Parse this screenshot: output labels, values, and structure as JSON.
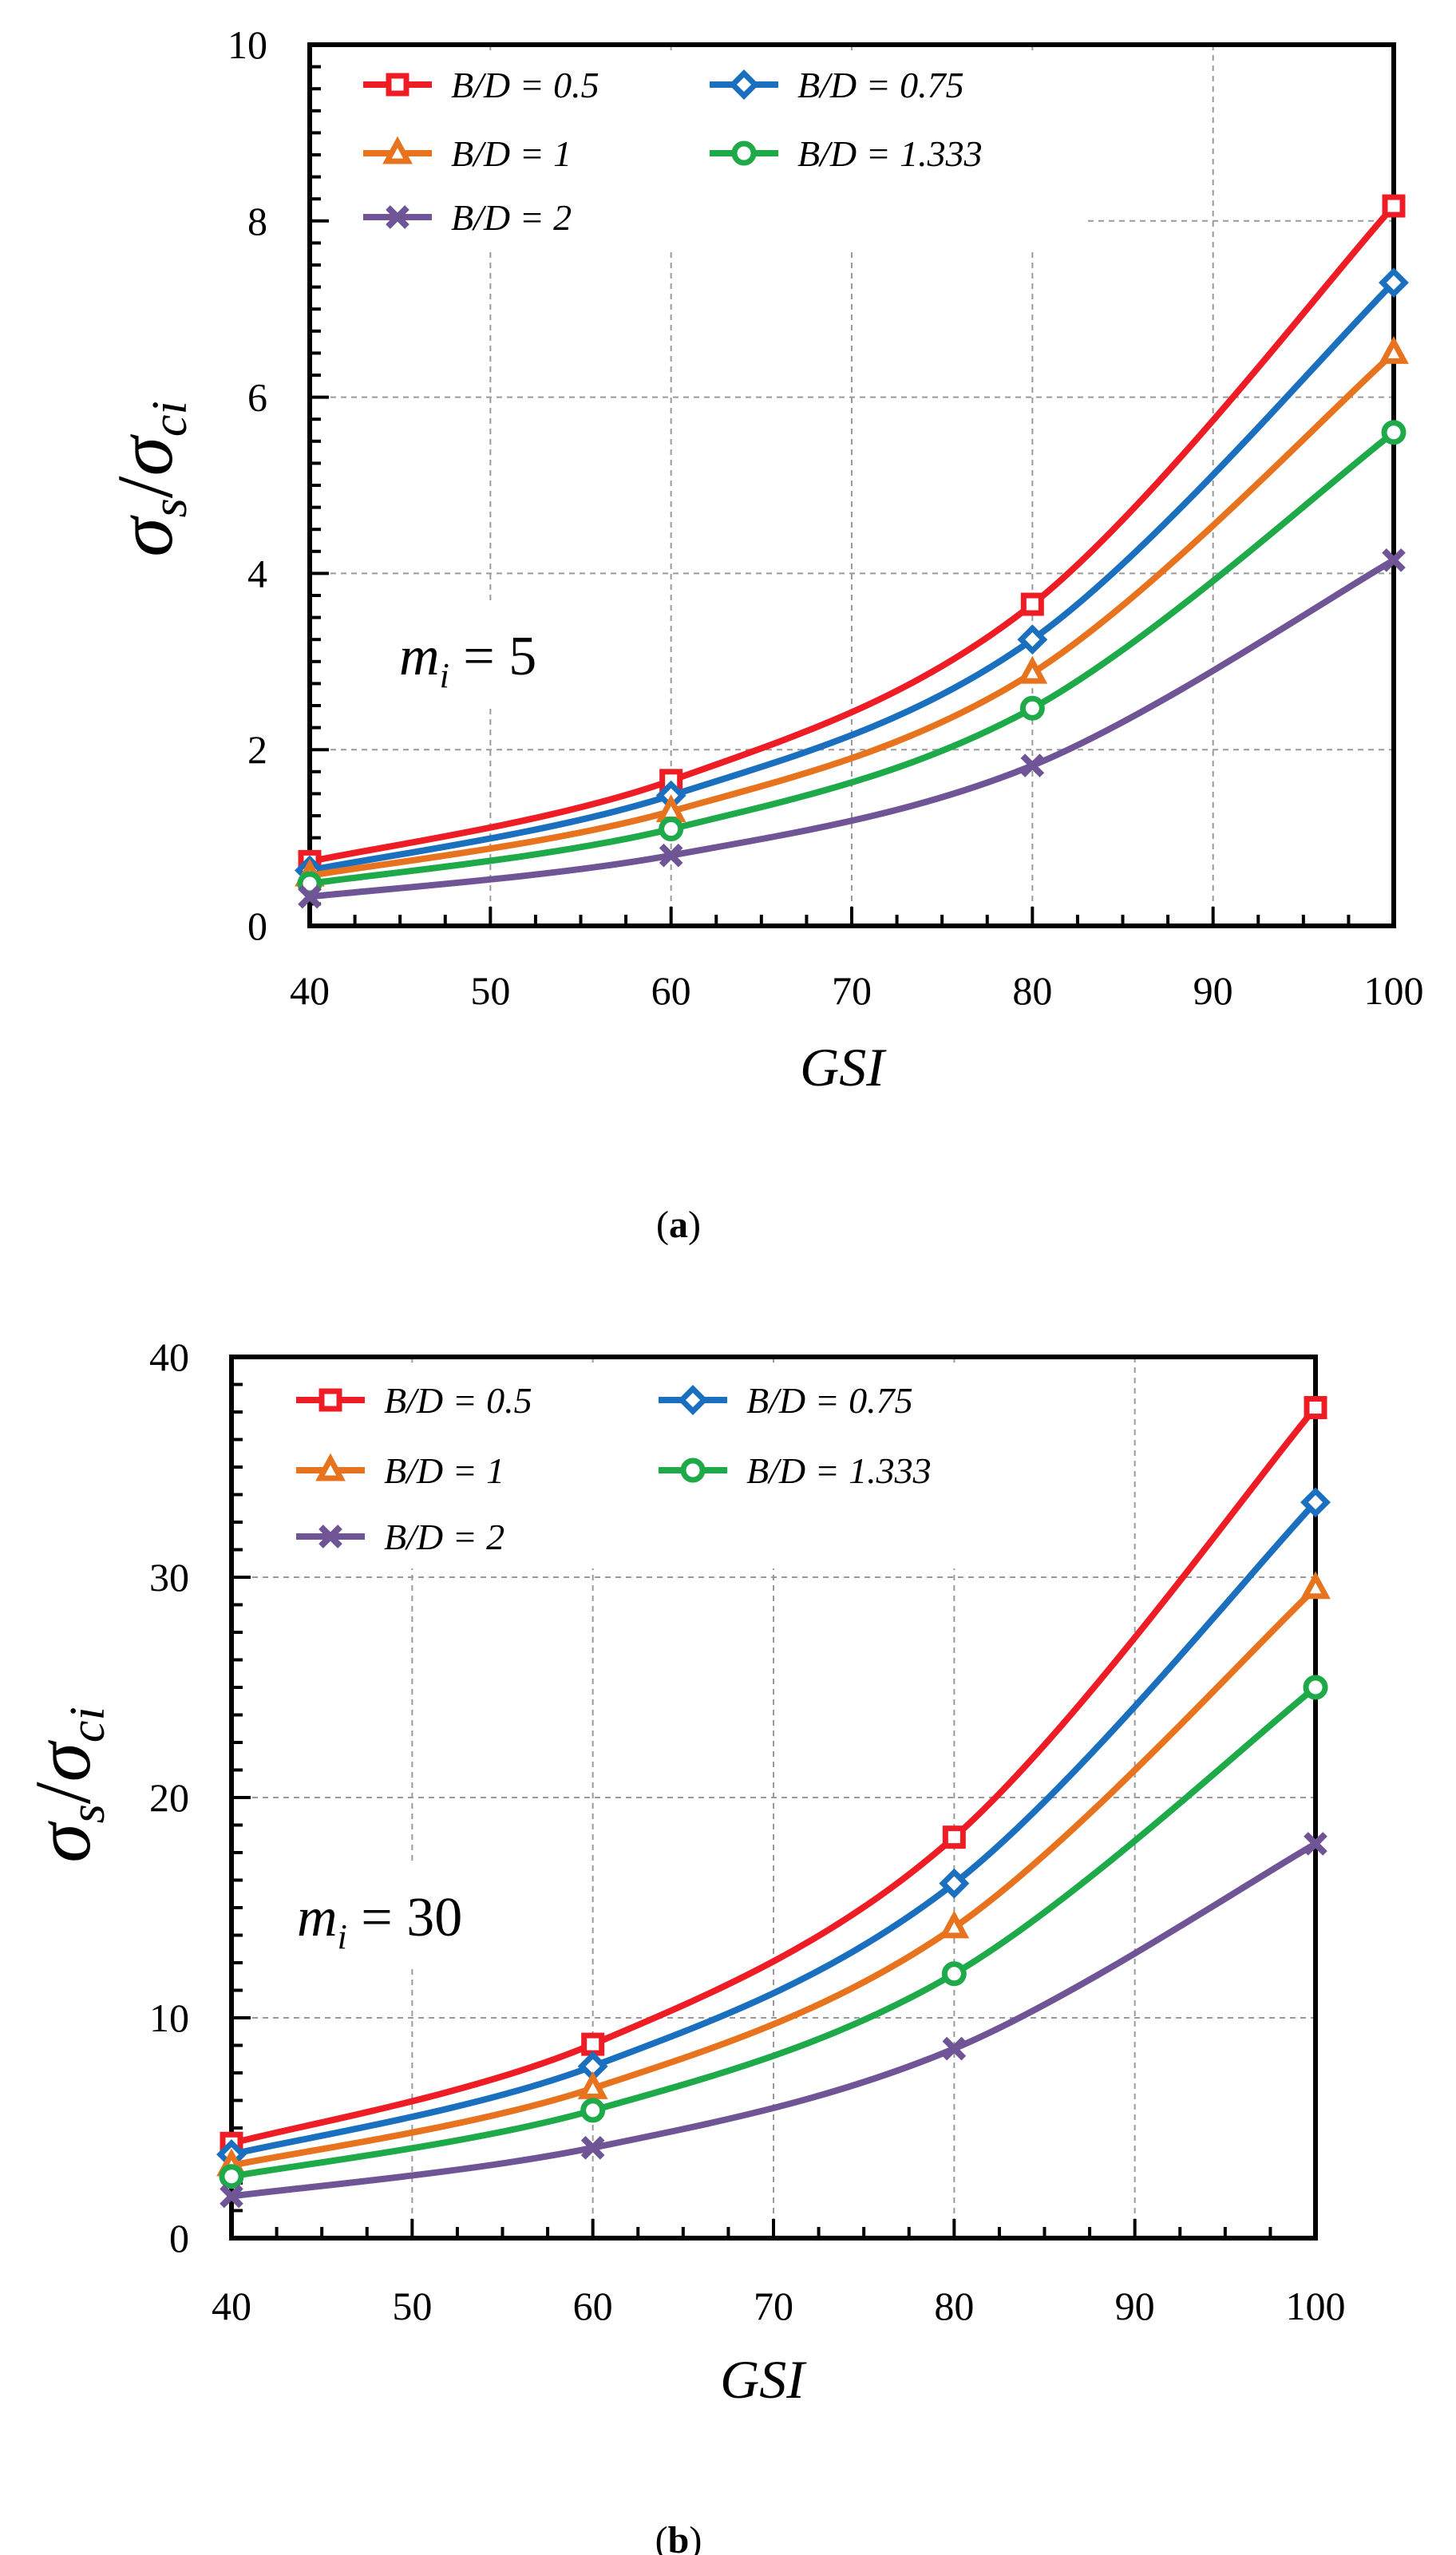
{
  "chart_data": [
    {
      "type": "line",
      "panel_label": "a",
      "annotation": {
        "symbol": "m",
        "sub": "i",
        "text": " = 5"
      },
      "xlabel": "GSI",
      "ylabel": {
        "sym1": "σ",
        "sub1": "s",
        "sep": "/",
        "sym2": "σ",
        "sub2": "ci"
      },
      "xlim": [
        40,
        100
      ],
      "ylim": [
        0,
        10
      ],
      "xticks": [
        40,
        50,
        60,
        70,
        80,
        90,
        100
      ],
      "yticks": [
        0,
        2,
        4,
        6,
        8,
        10
      ],
      "grid": true,
      "legend_position": "top-left",
      "x": [
        40,
        60,
        80,
        100
      ],
      "series": [
        {
          "name": "B/D = 0.5",
          "color": "#ee1c25",
          "marker": "square",
          "values": [
            0.73,
            1.65,
            3.65,
            8.17
          ]
        },
        {
          "name": "B/D = 0.75",
          "color": "#1a6fbf",
          "marker": "diamond",
          "values": [
            0.63,
            1.48,
            3.25,
            7.3
          ]
        },
        {
          "name": "B/D = 1",
          "color": "#e8731e",
          "marker": "triangle",
          "values": [
            0.57,
            1.3,
            2.87,
            6.5
          ]
        },
        {
          "name": "B/D = 1.333",
          "color": "#1faa4a",
          "marker": "circle",
          "values": [
            0.48,
            1.1,
            2.47,
            5.6
          ]
        },
        {
          "name": "B/D = 2",
          "color": "#6f5496",
          "marker": "x",
          "values": [
            0.33,
            0.8,
            1.82,
            4.15
          ]
        }
      ]
    },
    {
      "type": "line",
      "panel_label": "b",
      "annotation": {
        "symbol": "m",
        "sub": "i",
        "text": " = 30"
      },
      "xlabel": "GSI",
      "ylabel": {
        "sym1": "σ",
        "sub1": "s",
        "sep": "/",
        "sym2": "σ",
        "sub2": "ci"
      },
      "xlim": [
        40,
        100
      ],
      "ylim": [
        0,
        40
      ],
      "xticks": [
        40,
        50,
        60,
        70,
        80,
        90,
        100
      ],
      "yticks": [
        0,
        10,
        20,
        30,
        40
      ],
      "grid": true,
      "legend_position": "top-left",
      "x": [
        40,
        60,
        80,
        100
      ],
      "series": [
        {
          "name": "B/D = 0.5",
          "color": "#ee1c25",
          "marker": "square",
          "values": [
            4.3,
            8.8,
            18.2,
            37.7
          ]
        },
        {
          "name": "B/D = 0.75",
          "color": "#1a6fbf",
          "marker": "diamond",
          "values": [
            3.8,
            7.8,
            16.1,
            33.4
          ]
        },
        {
          "name": "B/D = 1",
          "color": "#e8731e",
          "marker": "triangle",
          "values": [
            3.3,
            6.8,
            14.1,
            29.5
          ]
        },
        {
          "name": "B/D = 1.333",
          "color": "#1faa4a",
          "marker": "circle",
          "values": [
            2.8,
            5.8,
            12.0,
            25.0
          ]
        },
        {
          "name": "B/D = 2",
          "color": "#6f5496",
          "marker": "x",
          "values": [
            1.9,
            4.1,
            8.6,
            17.9
          ]
        }
      ]
    }
  ]
}
